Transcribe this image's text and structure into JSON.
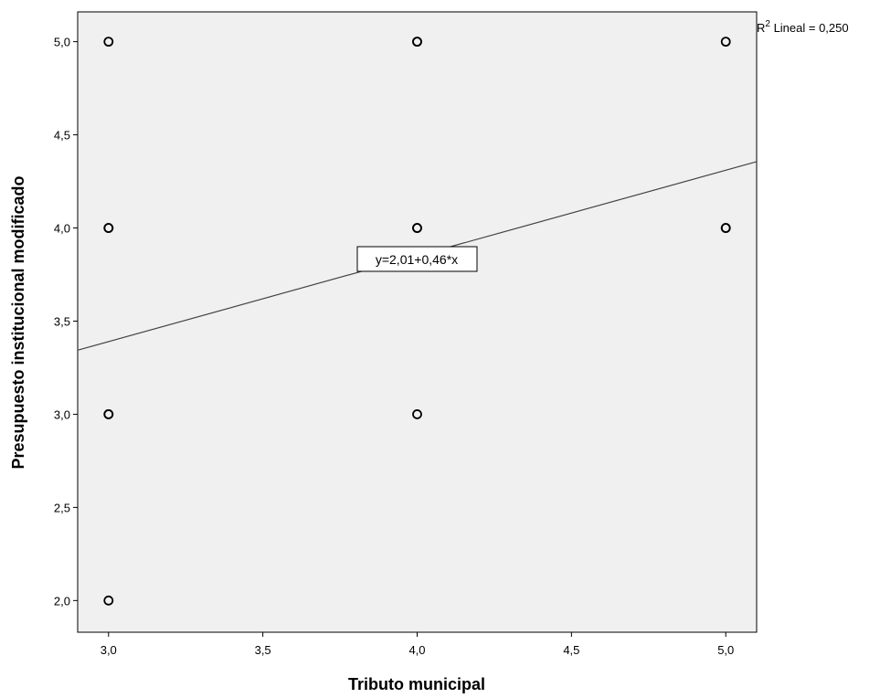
{
  "chart_data": {
    "type": "scatter",
    "xlabel": "Tributo municipal",
    "ylabel": "Presupuesto institucional modificado",
    "xlim": [
      2.9,
      5.1
    ],
    "ylim": [
      1.83,
      5.16
    ],
    "x_ticks": [
      3.0,
      3.5,
      4.0,
      4.5,
      5.0
    ],
    "x_tick_labels": [
      "3,0",
      "3,5",
      "4,0",
      "4,5",
      "5,0"
    ],
    "y_ticks": [
      2.0,
      2.5,
      3.0,
      3.5,
      4.0,
      4.5,
      5.0
    ],
    "y_tick_labels": [
      "2,0",
      "2,5",
      "3,0",
      "3,5",
      "4,0",
      "4,5",
      "5,0"
    ],
    "points": [
      {
        "x": 3,
        "y": 5
      },
      {
        "x": 3,
        "y": 4
      },
      {
        "x": 3,
        "y": 4
      },
      {
        "x": 3,
        "y": 3
      },
      {
        "x": 3,
        "y": 3
      },
      {
        "x": 3,
        "y": 2
      },
      {
        "x": 4,
        "y": 5
      },
      {
        "x": 4,
        "y": 5
      },
      {
        "x": 4,
        "y": 4
      },
      {
        "x": 4,
        "y": 4
      },
      {
        "x": 4,
        "y": 3
      },
      {
        "x": 5,
        "y": 5
      },
      {
        "x": 5,
        "y": 4
      },
      {
        "x": 5,
        "y": 4
      }
    ],
    "fit_line": {
      "intercept": 2.01,
      "slope": 0.46
    },
    "equation_label": "y=2,01+0,46*x",
    "r2_label_prefix": "R",
    "r2_label_sup": "2",
    "r2_label_suffix": " Lineal = 0,250",
    "grid": false,
    "plot_background": "#f0f0f0",
    "marker_color": "#000000"
  }
}
